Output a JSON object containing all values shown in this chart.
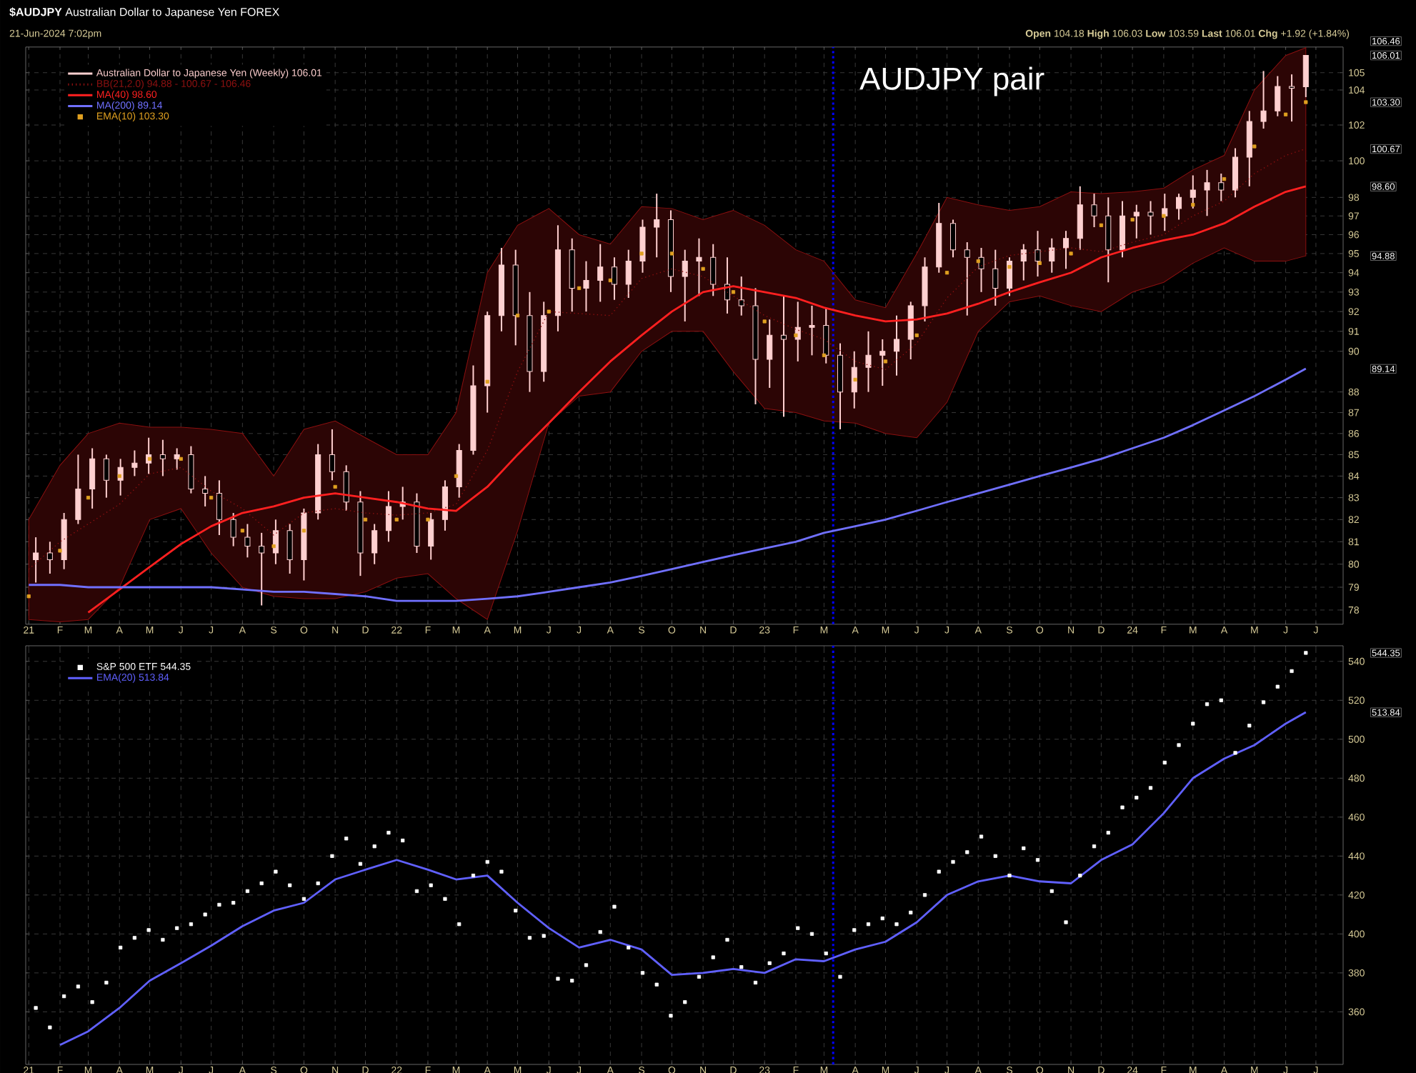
{
  "chart_data": [
    {
      "type": "candlestick",
      "title": "**$AUDJPY** Australian Dollar to Japanese Yen FOREX",
      "subtitle": "21-Jun-2024 7:02pm",
      "annotations": [
        "**Open** 104.18 **High** 106.03 **Low** 103.59 **Last** 106.01 **Chg** +1.92 (+1.84%)",
        "AUDJPY pair",
        "106.46",
        "106.01",
        "103.30",
        "100.67",
        "98.60",
        "94.88",
        "89.14"
      ],
      "x": [
        "2021-01-08",
        "2021-01-22",
        "2021-02-05",
        "2021-02-19",
        "2021-03-05",
        "2021-03-19",
        "2021-04-02",
        "2021-04-16",
        "2021-04-30",
        "2021-05-14",
        "2021-05-28",
        "2021-06-11",
        "2021-06-25",
        "2021-07-09",
        "2021-07-23",
        "2021-08-06",
        "2021-08-20",
        "2021-09-03",
        "2021-09-17",
        "2021-10-01",
        "2021-10-15",
        "2021-10-29",
        "2021-11-12",
        "2021-11-26",
        "2021-12-10",
        "2021-12-24",
        "2022-01-07",
        "2022-01-21",
        "2022-02-04",
        "2022-02-18",
        "2022-03-04",
        "2022-03-18",
        "2022-04-01",
        "2022-04-15",
        "2022-04-29",
        "2022-05-13",
        "2022-05-27",
        "2022-06-10",
        "2022-06-24",
        "2022-07-08",
        "2022-07-22",
        "2022-08-05",
        "2022-08-19",
        "2022-09-02",
        "2022-09-16",
        "2022-09-30",
        "2022-10-14",
        "2022-10-28",
        "2022-11-11",
        "2022-11-25",
        "2022-12-09",
        "2022-12-23",
        "2023-01-06",
        "2023-01-20",
        "2023-02-03",
        "2023-02-17",
        "2023-03-03",
        "2023-03-17",
        "2023-03-31",
        "2023-04-14",
        "2023-04-28",
        "2023-05-12",
        "2023-05-26",
        "2023-06-09",
        "2023-06-23",
        "2023-07-07",
        "2023-07-21",
        "2023-08-04",
        "2023-08-18",
        "2023-09-01",
        "2023-09-15",
        "2023-09-29",
        "2023-10-13",
        "2023-10-27",
        "2023-11-10",
        "2023-11-24",
        "2023-12-08",
        "2023-12-22",
        "2024-01-05",
        "2024-01-19",
        "2024-02-02",
        "2024-02-16",
        "2024-03-01",
        "2024-03-15",
        "2024-03-29",
        "2024-04-12",
        "2024-04-26",
        "2024-05-10",
        "2024-05-24",
        "2024-06-07",
        "2024-06-21"
      ],
      "series": [
        {
          "name": "Australian Dollar to Japanese Yen (Weekly) 106.01",
          "color": "#ffd0d0",
          "ohlc": [
            [
              80.2,
              81.2,
              79.2,
              80.5
            ],
            [
              80.5,
              81.0,
              79.6,
              80.2
            ],
            [
              80.2,
              82.3,
              79.8,
              82.0
            ],
            [
              82.0,
              85.0,
              81.8,
              83.4
            ],
            [
              83.4,
              85.3,
              82.5,
              84.8
            ],
            [
              84.8,
              85.0,
              83.0,
              83.8
            ],
            [
              83.8,
              84.8,
              83.1,
              84.4
            ],
            [
              84.4,
              85.2,
              84.0,
              84.6
            ],
            [
              84.6,
              85.8,
              84.1,
              85.0
            ],
            [
              85.0,
              85.7,
              84.0,
              84.8
            ],
            [
              84.8,
              85.3,
              84.3,
              85.0
            ],
            [
              85.0,
              85.4,
              83.2,
              83.4
            ],
            [
              83.4,
              84.0,
              82.6,
              83.2
            ],
            [
              83.2,
              83.8,
              81.3,
              82.0
            ],
            [
              82.0,
              82.3,
              80.8,
              81.2
            ],
            [
              81.2,
              81.8,
              80.3,
              80.8
            ],
            [
              80.8,
              81.4,
              78.2,
              80.5
            ],
            [
              80.5,
              82.0,
              80.0,
              81.5
            ],
            [
              81.5,
              81.8,
              79.6,
              80.2
            ],
            [
              80.2,
              82.5,
              79.3,
              82.3
            ],
            [
              82.3,
              85.5,
              82.0,
              85.0
            ],
            [
              85.0,
              86.2,
              83.8,
              84.2
            ],
            [
              84.2,
              84.5,
              82.4,
              82.8
            ],
            [
              82.8,
              83.3,
              79.5,
              80.5
            ],
            [
              80.5,
              81.8,
              80.0,
              81.5
            ],
            [
              81.5,
              83.3,
              81.0,
              82.6
            ],
            [
              82.6,
              83.5,
              82.0,
              82.8
            ],
            [
              82.8,
              83.2,
              80.5,
              80.8
            ],
            [
              80.8,
              82.3,
              80.2,
              82.0
            ],
            [
              82.0,
              83.8,
              81.5,
              83.5
            ],
            [
              83.5,
              85.5,
              83.0,
              85.2
            ],
            [
              85.2,
              89.3,
              85.0,
              88.3
            ],
            [
              88.3,
              92.0,
              87.0,
              91.8
            ],
            [
              91.8,
              95.3,
              91.0,
              94.4
            ],
            [
              94.4,
              95.2,
              90.3,
              91.8
            ],
            [
              91.8,
              93.0,
              88.0,
              89.0
            ],
            [
              89.0,
              92.5,
              88.5,
              91.8
            ],
            [
              91.8,
              96.5,
              91.0,
              95.2
            ],
            [
              95.2,
              95.8,
              92.0,
              93.2
            ],
            [
              93.2,
              94.6,
              92.0,
              93.6
            ],
            [
              93.6,
              95.5,
              92.5,
              94.3
            ],
            [
              94.3,
              94.8,
              92.6,
              93.4
            ],
            [
              93.4,
              95.2,
              92.7,
              94.6
            ],
            [
              94.6,
              96.8,
              94.0,
              96.4
            ],
            [
              96.4,
              98.2,
              94.8,
              96.8
            ],
            [
              96.8,
              97.3,
              93.0,
              93.8
            ],
            [
              93.8,
              95.2,
              91.5,
              94.6
            ],
            [
              94.6,
              95.8,
              92.8,
              94.8
            ],
            [
              94.8,
              95.5,
              92.8,
              93.4
            ],
            [
              93.4,
              94.8,
              91.9,
              92.6
            ],
            [
              92.6,
              93.8,
              91.8,
              92.3
            ],
            [
              92.3,
              93.2,
              87.4,
              89.6
            ],
            [
              89.6,
              91.6,
              88.2,
              90.8
            ],
            [
              90.8,
              92.8,
              86.8,
              90.6
            ],
            [
              90.6,
              92.5,
              89.5,
              91.2
            ],
            [
              91.2,
              92.3,
              89.8,
              91.3
            ],
            [
              91.3,
              92.2,
              89.4,
              89.8
            ],
            [
              89.8,
              90.4,
              86.2,
              88.0
            ],
            [
              88.0,
              90.0,
              87.2,
              89.2
            ],
            [
              89.2,
              91.0,
              88.0,
              89.8
            ],
            [
              89.8,
              90.6,
              88.3,
              90.0
            ],
            [
              90.0,
              91.8,
              88.8,
              90.6
            ],
            [
              90.6,
              92.5,
              89.6,
              92.3
            ],
            [
              92.3,
              94.8,
              91.5,
              94.3
            ],
            [
              94.3,
              97.7,
              94.0,
              96.6
            ],
            [
              96.6,
              96.8,
              94.8,
              95.2
            ],
            [
              95.2,
              95.6,
              91.8,
              94.8
            ],
            [
              94.8,
              95.3,
              93.0,
              94.2
            ],
            [
              94.2,
              95.2,
              92.3,
              93.2
            ],
            [
              93.2,
              94.8,
              92.8,
              94.6
            ],
            [
              94.6,
              95.5,
              93.6,
              95.2
            ],
            [
              95.2,
              96.2,
              93.8,
              94.6
            ],
            [
              94.6,
              95.8,
              94.0,
              95.3
            ],
            [
              95.3,
              96.2,
              94.2,
              95.8
            ],
            [
              95.8,
              98.6,
              95.2,
              97.6
            ],
            [
              97.6,
              98.2,
              96.4,
              97.0
            ],
            [
              97.0,
              98.0,
              93.5,
              95.2
            ],
            [
              95.2,
              97.8,
              94.8,
              97.0
            ],
            [
              97.0,
              97.6,
              95.8,
              97.2
            ],
            [
              97.2,
              97.8,
              96.0,
              97.0
            ],
            [
              97.0,
              98.2,
              96.2,
              97.4
            ],
            [
              97.4,
              98.2,
              96.8,
              98.0
            ],
            [
              98.0,
              99.2,
              97.4,
              98.4
            ],
            [
              98.4,
              99.5,
              97.0,
              98.8
            ],
            [
              98.8,
              99.3,
              97.8,
              98.4
            ],
            [
              98.4,
              100.7,
              98.0,
              100.2
            ],
            [
              100.2,
              102.8,
              98.6,
              102.2
            ],
            [
              102.2,
              105.1,
              101.8,
              102.8
            ],
            [
              102.8,
              104.8,
              102.5,
              104.2
            ],
            [
              104.2,
              104.9,
              102.2,
              104.1
            ],
            [
              104.18,
              106.03,
              103.59,
              106.01
            ]
          ]
        },
        {
          "name": "BB(21,2.0) 94.88 - 100.67 - 106.46",
          "type": "line",
          "color": "#8b1010",
          "line_style": "dotted",
          "x": [
            "2021-01",
            "2021-02",
            "2021-03",
            "2021-04",
            "2021-05",
            "2021-06",
            "2021-07",
            "2021-08",
            "2021-09",
            "2021-10",
            "2021-11",
            "2021-12",
            "2022-01",
            "2022-02",
            "2022-03",
            "2022-04",
            "2022-05",
            "2022-06",
            "2022-07",
            "2022-08",
            "2022-09",
            "2022-10",
            "2022-11",
            "2022-12",
            "2023-01",
            "2023-02",
            "2023-03",
            "2023-04",
            "2023-05",
            "2023-06",
            "2023-07",
            "2023-08",
            "2023-09",
            "2023-10",
            "2023-11",
            "2023-12",
            "2024-01",
            "2024-02",
            "2024-03",
            "2024-04",
            "2024-05",
            "2024-06",
            "2024-06-21"
          ],
          "values": [
            79.8,
            81.0,
            81.8,
            82.7,
            84.1,
            84.4,
            83.3,
            82.5,
            81.3,
            82.3,
            82.5,
            82.3,
            82.2,
            82.3,
            82.7,
            85.2,
            89.0,
            92.0,
            91.9,
            91.8,
            93.7,
            94.2,
            93.8,
            92.8,
            91.8,
            91.1,
            90.6,
            89.5,
            89.1,
            90.4,
            92.7,
            94.3,
            94.9,
            95.1,
            95.3,
            95.1,
            95.6,
            96.0,
            97.0,
            97.8,
            99.3,
            100.3,
            100.67
          ],
          "upper": [
            82.0,
            84.5,
            86.0,
            86.5,
            86.3,
            86.3,
            86.2,
            86.0,
            84.0,
            86.2,
            86.6,
            85.8,
            85.0,
            85.0,
            87.0,
            94.0,
            96.5,
            97.4,
            96.0,
            95.5,
            97.5,
            97.4,
            96.8,
            97.3,
            96.5,
            95.2,
            94.6,
            92.6,
            92.2,
            95.0,
            98.0,
            97.6,
            97.3,
            97.5,
            98.3,
            98.2,
            98.3,
            98.5,
            99.5,
            100.3,
            104.0,
            106.0,
            106.46
          ],
          "lower": [
            77.6,
            77.5,
            77.6,
            79.0,
            82.0,
            82.5,
            80.5,
            79.0,
            78.6,
            78.5,
            78.5,
            78.8,
            79.4,
            79.6,
            78.5,
            77.6,
            81.5,
            86.5,
            87.8,
            88.0,
            90.0,
            91.0,
            91.0,
            89.0,
            87.2,
            87.0,
            86.6,
            86.5,
            86.0,
            85.8,
            87.5,
            91.0,
            92.5,
            92.8,
            92.3,
            92.0,
            93.0,
            93.5,
            94.5,
            95.3,
            94.6,
            94.6,
            94.88
          ]
        },
        {
          "name": "MA(40) 98.60",
          "type": "line",
          "color": "#ff2020",
          "x": [
            "2021-03",
            "2021-04",
            "2021-05",
            "2021-06",
            "2021-07",
            "2021-08",
            "2021-09",
            "2021-10",
            "2021-11",
            "2021-12",
            "2022-01",
            "2022-02",
            "2022-03",
            "2022-04",
            "2022-05",
            "2022-06",
            "2022-07",
            "2022-08",
            "2022-09",
            "2022-10",
            "2022-11",
            "2022-12",
            "2023-01",
            "2023-02",
            "2023-03",
            "2023-04",
            "2023-05",
            "2023-06",
            "2023-07",
            "2023-08",
            "2023-09",
            "2023-10",
            "2023-11",
            "2023-12",
            "2024-01",
            "2024-02",
            "2024-03",
            "2024-04",
            "2024-05",
            "2024-06",
            "2024-06-21"
          ],
          "values": [
            77.9,
            78.9,
            79.9,
            80.9,
            81.7,
            82.3,
            82.6,
            83.0,
            83.2,
            83.0,
            82.8,
            82.5,
            82.4,
            83.5,
            85.0,
            86.5,
            88.0,
            89.5,
            90.8,
            92.0,
            93.0,
            93.3,
            93.0,
            92.7,
            92.2,
            91.8,
            91.5,
            91.6,
            91.9,
            92.4,
            93.0,
            93.5,
            94.0,
            94.8,
            95.3,
            95.7,
            96.0,
            96.6,
            97.5,
            98.3,
            98.6
          ]
        },
        {
          "name": "MA(200) 89.14",
          "type": "line",
          "color": "#7070ff",
          "x": [
            "2021-01",
            "2021-02",
            "2021-03",
            "2021-04",
            "2021-05",
            "2021-06",
            "2021-07",
            "2021-08",
            "2021-09",
            "2021-10",
            "2021-11",
            "2021-12",
            "2022-01",
            "2022-02",
            "2022-03",
            "2022-04",
            "2022-05",
            "2022-06",
            "2022-07",
            "2022-08",
            "2022-09",
            "2022-10",
            "2022-11",
            "2022-12",
            "2023-01",
            "2023-02",
            "2023-03",
            "2023-04",
            "2023-05",
            "2023-06",
            "2023-07",
            "2023-08",
            "2023-09",
            "2023-10",
            "2023-11",
            "2023-12",
            "2024-01",
            "2024-02",
            "2024-03",
            "2024-04",
            "2024-05",
            "2024-06",
            "2024-06-21"
          ],
          "values": [
            79.1,
            79.1,
            79.0,
            79.0,
            79.0,
            79.0,
            79.0,
            78.9,
            78.8,
            78.8,
            78.7,
            78.6,
            78.4,
            78.4,
            78.4,
            78.5,
            78.6,
            78.8,
            79.0,
            79.2,
            79.5,
            79.8,
            80.1,
            80.4,
            80.7,
            81.0,
            81.4,
            81.7,
            82.0,
            82.4,
            82.8,
            83.2,
            83.6,
            84.0,
            84.4,
            84.8,
            85.3,
            85.8,
            86.4,
            87.1,
            87.8,
            88.6,
            89.14
          ]
        },
        {
          "name": "EMA(10) 103.30",
          "type": "scatter",
          "color": "#e0a020",
          "marker": "square",
          "x": [
            "2021-01",
            "2021-02",
            "2021-03",
            "2021-04",
            "2021-05",
            "2021-06",
            "2021-07",
            "2021-08",
            "2021-09",
            "2021-10",
            "2021-11",
            "2021-12",
            "2022-01",
            "2022-02",
            "2022-03",
            "2022-04",
            "2022-05",
            "2022-06",
            "2022-07",
            "2022-08",
            "2022-09",
            "2022-10",
            "2022-11",
            "2022-12",
            "2023-01",
            "2023-02",
            "2023-03",
            "2023-04",
            "2023-05",
            "2023-06",
            "2023-07",
            "2023-08",
            "2023-09",
            "2023-10",
            "2023-11",
            "2023-12",
            "2024-01",
            "2024-02",
            "2024-03",
            "2024-04",
            "2024-05",
            "2024-06",
            "2024-06-21"
          ],
          "values": [
            78.6,
            80.6,
            83.0,
            84.0,
            84.8,
            84.8,
            83.0,
            81.5,
            80.8,
            81.5,
            83.5,
            82.0,
            82.0,
            82.0,
            84.0,
            88.5,
            91.8,
            92.0,
            93.2,
            93.6,
            95.0,
            95.0,
            94.2,
            93.0,
            91.5,
            90.8,
            89.8,
            88.6,
            89.5,
            90.8,
            94.0,
            94.6,
            94.3,
            94.5,
            95.0,
            96.5,
            96.8,
            97.0,
            97.6,
            99.0,
            100.8,
            102.6,
            103.3
          ]
        }
      ],
      "xlim": [
        "2020-12-29",
        "2024-07-28"
      ],
      "ylim": [
        77.4,
        106.5
      ],
      "log": "y",
      "xticks": [
        {
          "value": "2021-01",
          "label": "21"
        },
        {
          "value": "2021-02",
          "label": "F"
        },
        {
          "value": "2021-03",
          "label": "M"
        },
        {
          "value": "2021-04",
          "label": "A"
        },
        {
          "value": "2021-05",
          "label": "M"
        },
        {
          "value": "2021-06",
          "label": "J"
        },
        {
          "value": "2021-07",
          "label": "J"
        },
        {
          "value": "2021-08",
          "label": "A"
        },
        {
          "value": "2021-09",
          "label": "S"
        },
        {
          "value": "2021-10",
          "label": "O"
        },
        {
          "value": "2021-11",
          "label": "N"
        },
        {
          "value": "2021-12",
          "label": "D"
        },
        {
          "value": "2022-01",
          "label": "22"
        },
        {
          "value": "2022-02",
          "label": "F"
        },
        {
          "value": "2022-03",
          "label": "M"
        },
        {
          "value": "2022-04",
          "label": "A"
        },
        {
          "value": "2022-05",
          "label": "M"
        },
        {
          "value": "2022-06",
          "label": "J"
        },
        {
          "value": "2022-07",
          "label": "J"
        },
        {
          "value": "2022-08",
          "label": "A"
        },
        {
          "value": "2022-09",
          "label": "S"
        },
        {
          "value": "2022-10",
          "label": "O"
        },
        {
          "value": "2022-11",
          "label": "N"
        },
        {
          "value": "2022-12",
          "label": "D"
        },
        {
          "value": "2023-01",
          "label": "23"
        },
        {
          "value": "2023-02",
          "label": "F"
        },
        {
          "value": "2023-03",
          "label": "M"
        },
        {
          "value": "2023-04",
          "label": "A"
        },
        {
          "value": "2023-05",
          "label": "M"
        },
        {
          "value": "2023-06",
          "label": "J"
        },
        {
          "value": "2023-07",
          "label": "J"
        },
        {
          "value": "2023-08",
          "label": "A"
        },
        {
          "value": "2023-09",
          "label": "S"
        },
        {
          "value": "2023-10",
          "label": "O"
        },
        {
          "value": "2023-11",
          "label": "N"
        },
        {
          "value": "2023-12",
          "label": "D"
        },
        {
          "value": "2024-01",
          "label": "24"
        },
        {
          "value": "2024-02",
          "label": "F"
        },
        {
          "value": "2024-03",
          "label": "M"
        },
        {
          "value": "2024-04",
          "label": "A"
        },
        {
          "value": "2024-05",
          "label": "M"
        },
        {
          "value": "2024-06",
          "label": "J"
        },
        {
          "value": "2024-07",
          "label": "J"
        }
      ],
      "yticks": [
        78,
        79,
        80,
        81,
        82,
        83,
        84,
        85,
        86,
        87,
        88,
        90,
        91,
        92,
        93,
        94,
        95,
        96,
        97,
        98,
        100,
        102,
        104,
        105
      ],
      "ref_lines": [
        {
          "axis": "x",
          "value": "2023-03-10",
          "color": "#0000ff",
          "line_style": "dotted"
        }
      ],
      "grid": true,
      "legend": "top left"
    },
    {
      "type": "scatter",
      "annotations": [
        "544.35",
        "513.84"
      ],
      "x": [
        "2021-01-08",
        "2021-01-22",
        "2021-02-05",
        "2021-02-19",
        "2021-03-05",
        "2021-03-19",
        "2021-04-02",
        "2021-04-16",
        "2021-04-30",
        "2021-05-14",
        "2021-05-28",
        "2021-06-11",
        "2021-06-25",
        "2021-07-09",
        "2021-07-23",
        "2021-08-06",
        "2021-08-20",
        "2021-09-03",
        "2021-09-17",
        "2021-10-01",
        "2021-10-15",
        "2021-10-29",
        "2021-11-12",
        "2021-11-26",
        "2021-12-10",
        "2021-12-24",
        "2022-01-07",
        "2022-01-21",
        "2022-02-04",
        "2022-02-18",
        "2022-03-04",
        "2022-03-18",
        "2022-04-01",
        "2022-04-15",
        "2022-04-29",
        "2022-05-13",
        "2022-05-27",
        "2022-06-10",
        "2022-06-24",
        "2022-07-08",
        "2022-07-22",
        "2022-08-05",
        "2022-08-19",
        "2022-09-02",
        "2022-09-16",
        "2022-09-30",
        "2022-10-14",
        "2022-10-28",
        "2022-11-11",
        "2022-11-25",
        "2022-12-09",
        "2022-12-23",
        "2023-01-06",
        "2023-01-20",
        "2023-02-03",
        "2023-02-17",
        "2023-03-03",
        "2023-03-17",
        "2023-03-31",
        "2023-04-14",
        "2023-04-28",
        "2023-05-12",
        "2023-05-26",
        "2023-06-09",
        "2023-06-23",
        "2023-07-07",
        "2023-07-21",
        "2023-08-04",
        "2023-08-18",
        "2023-09-01",
        "2023-09-15",
        "2023-09-29",
        "2023-10-13",
        "2023-10-27",
        "2023-11-10",
        "2023-11-24",
        "2023-12-08",
        "2023-12-22",
        "2024-01-05",
        "2024-01-19",
        "2024-02-02",
        "2024-02-16",
        "2024-03-01",
        "2024-03-15",
        "2024-03-29",
        "2024-04-12",
        "2024-04-26",
        "2024-05-10",
        "2024-05-24",
        "2024-06-07",
        "2024-06-21"
      ],
      "series": [
        {
          "name": "S&P 500 ETF 544.35",
          "color": "#ffffff",
          "marker": "square",
          "values": [
            362,
            352,
            368,
            373,
            365,
            375,
            393,
            398,
            402,
            397,
            403,
            405,
            410,
            415,
            416,
            422,
            426,
            432,
            425,
            418,
            426,
            440,
            449,
            436,
            445,
            452,
            448,
            422,
            425,
            418,
            405,
            430,
            437,
            432,
            412,
            398,
            399,
            377,
            376,
            384,
            401,
            414,
            393,
            380,
            374,
            358,
            365,
            378,
            388,
            397,
            383,
            375,
            385,
            390,
            403,
            400,
            390,
            378,
            402,
            405,
            408,
            405,
            411,
            420,
            432,
            437,
            442,
            450,
            440,
            430,
            444,
            438,
            422,
            406,
            430,
            445,
            452,
            465,
            470,
            475,
            488,
            497,
            508,
            518,
            520,
            493,
            507,
            519,
            527,
            535,
            544.35
          ]
        },
        {
          "name": "EMA(20) 513.84",
          "type": "line",
          "color": "#6060ff",
          "x": [
            "2021-02",
            "2021-03",
            "2021-04",
            "2021-05",
            "2021-06",
            "2021-07",
            "2021-08",
            "2021-09",
            "2021-10",
            "2021-11",
            "2021-12",
            "2022-01",
            "2022-02",
            "2022-03",
            "2022-04",
            "2022-05",
            "2022-06",
            "2022-07",
            "2022-08",
            "2022-09",
            "2022-10",
            "2022-11",
            "2022-12",
            "2023-01",
            "2023-02",
            "2023-03",
            "2023-04",
            "2023-05",
            "2023-06",
            "2023-07",
            "2023-08",
            "2023-09",
            "2023-10",
            "2023-11",
            "2023-12",
            "2024-01",
            "2024-02",
            "2024-03",
            "2024-04",
            "2024-05",
            "2024-06",
            "2024-06-21"
          ],
          "values": [
            343,
            350,
            362,
            376,
            385,
            394,
            404,
            412,
            416,
            428,
            433,
            438,
            433,
            428,
            430,
            416,
            403,
            393,
            397,
            392,
            379,
            380,
            382,
            380,
            387,
            386,
            392,
            396,
            406,
            420,
            427,
            430,
            427,
            426,
            438,
            446,
            462,
            480,
            490,
            497,
            508,
            513.84
          ]
        }
      ],
      "xlim": [
        "2020-12-29",
        "2024-07-28"
      ],
      "ylim": [
        333,
        548
      ],
      "xticks": [
        {
          "value": "2021-01",
          "label": "21"
        },
        {
          "value": "2021-02",
          "label": "F"
        },
        {
          "value": "2021-03",
          "label": "M"
        },
        {
          "value": "2021-04",
          "label": "A"
        },
        {
          "value": "2021-05",
          "label": "M"
        },
        {
          "value": "2021-06",
          "label": "J"
        },
        {
          "value": "2021-07",
          "label": "J"
        },
        {
          "value": "2021-08",
          "label": "A"
        },
        {
          "value": "2021-09",
          "label": "S"
        },
        {
          "value": "2021-10",
          "label": "O"
        },
        {
          "value": "2021-11",
          "label": "N"
        },
        {
          "value": "2021-12",
          "label": "D"
        },
        {
          "value": "2022-01",
          "label": "22"
        },
        {
          "value": "2022-02",
          "label": "F"
        },
        {
          "value": "2022-03",
          "label": "M"
        },
        {
          "value": "2022-04",
          "label": "A"
        },
        {
          "value": "2022-05",
          "label": "M"
        },
        {
          "value": "2022-06",
          "label": "J"
        },
        {
          "value": "2022-07",
          "label": "J"
        },
        {
          "value": "2022-08",
          "label": "A"
        },
        {
          "value": "2022-09",
          "label": "S"
        },
        {
          "value": "2022-10",
          "label": "O"
        },
        {
          "value": "2022-11",
          "label": "N"
        },
        {
          "value": "2022-12",
          "label": "D"
        },
        {
          "value": "2023-01",
          "label": "23"
        },
        {
          "value": "2023-02",
          "label": "F"
        },
        {
          "value": "2023-03",
          "label": "M"
        },
        {
          "value": "2023-04",
          "label": "A"
        },
        {
          "value": "2023-05",
          "label": "M"
        },
        {
          "value": "2023-06",
          "label": "J"
        },
        {
          "value": "2023-07",
          "label": "J"
        },
        {
          "value": "2023-08",
          "label": "A"
        },
        {
          "value": "2023-09",
          "label": "S"
        },
        {
          "value": "2023-10",
          "label": "O"
        },
        {
          "value": "2023-11",
          "label": "N"
        },
        {
          "value": "2023-12",
          "label": "D"
        },
        {
          "value": "2024-01",
          "label": "24"
        },
        {
          "value": "2024-02",
          "label": "F"
        },
        {
          "value": "2024-03",
          "label": "M"
        },
        {
          "value": "2024-04",
          "label": "A"
        },
        {
          "value": "2024-05",
          "label": "M"
        },
        {
          "value": "2024-06",
          "label": "J"
        },
        {
          "value": "2024-07",
          "label": "J"
        }
      ],
      "yticks": [
        360,
        380,
        400,
        420,
        440,
        460,
        480,
        500,
        520,
        540
      ],
      "ref_lines": [
        {
          "axis": "x",
          "value": "2023-03-10",
          "color": "#0000ff",
          "line_style": "dotted"
        }
      ],
      "grid": true,
      "legend": "top left"
    }
  ]
}
